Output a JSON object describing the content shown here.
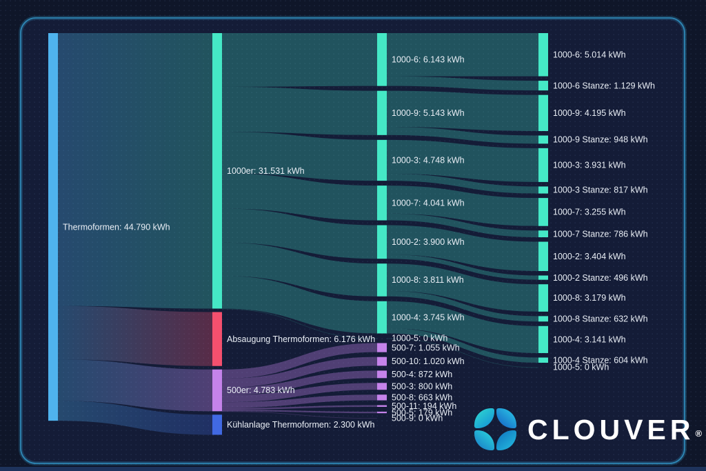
{
  "brand": {
    "name": "CLOUVER",
    "registered": "®"
  },
  "colors": {
    "blue": "#4FB3EE",
    "teal": "#45E8C6",
    "pink": "#F4506E",
    "purple": "#C583EA",
    "royal": "#4169E2",
    "label": "#E9EEF5",
    "frame_border": "#2E86B4",
    "background": "#141C37",
    "outer_background": "#0F1629"
  },
  "chart_data": {
    "type": "sankey",
    "unit": "kWh",
    "nodes": [
      {
        "id": "t",
        "col": 1,
        "label": "Thermoformen: 44.790 kWh",
        "value": 44790,
        "color": "blue"
      },
      {
        "id": "m1000",
        "col": 2,
        "label": "1000er: 31.531 kWh",
        "value": 31531,
        "color": "teal"
      },
      {
        "id": "abs",
        "col": 2,
        "label": "Absaugung Thermoformen: 6.176 kWh",
        "value": 6176,
        "color": "pink"
      },
      {
        "id": "m500",
        "col": 2,
        "label": "500er: 4.783 kWh",
        "value": 4783,
        "color": "purple"
      },
      {
        "id": "kuehl",
        "col": 2,
        "label": "Kühlanlage Thermoformen: 2.300 kWh",
        "value": 2300,
        "color": "royal"
      },
      {
        "id": "n1000_6",
        "col": 3,
        "label": "1000-6: 6.143 kWh",
        "value": 6143,
        "color": "teal"
      },
      {
        "id": "n1000_9",
        "col": 3,
        "label": "1000-9: 5.143 kWh",
        "value": 5143,
        "color": "teal"
      },
      {
        "id": "n1000_3",
        "col": 3,
        "label": "1000-3: 4.748 kWh",
        "value": 4748,
        "color": "teal"
      },
      {
        "id": "n1000_7",
        "col": 3,
        "label": "1000-7: 4.041 kWh",
        "value": 4041,
        "color": "teal"
      },
      {
        "id": "n1000_2",
        "col": 3,
        "label": "1000-2: 3.900 kWh",
        "value": 3900,
        "color": "teal"
      },
      {
        "id": "n1000_8",
        "col": 3,
        "label": "1000-8: 3.811 kWh",
        "value": 3811,
        "color": "teal"
      },
      {
        "id": "n1000_4",
        "col": 3,
        "label": "1000-4: 3.745 kWh",
        "value": 3745,
        "color": "teal"
      },
      {
        "id": "n1000_5",
        "col": 3,
        "label": "1000-5: 0 kWh",
        "value": 0,
        "color": "teal"
      },
      {
        "id": "n500_7",
        "col": 3,
        "label": "500-7: 1.055 kWh",
        "value": 1055,
        "color": "purple"
      },
      {
        "id": "n500_10",
        "col": 3,
        "label": "500-10: 1.020 kWh",
        "value": 1020,
        "color": "purple"
      },
      {
        "id": "n500_4",
        "col": 3,
        "label": "500-4: 872 kWh",
        "value": 872,
        "color": "purple"
      },
      {
        "id": "n500_3",
        "col": 3,
        "label": "500-3: 800 kWh",
        "value": 800,
        "color": "purple"
      },
      {
        "id": "n500_8",
        "col": 3,
        "label": "500-8: 663 kWh",
        "value": 663,
        "color": "purple"
      },
      {
        "id": "n500_11",
        "col": 3,
        "label": "500-11: 194 kWh",
        "value": 194,
        "color": "purple"
      },
      {
        "id": "n500_5",
        "col": 3,
        "label": "500-5: 179 kWh",
        "value": 179,
        "color": "purple"
      },
      {
        "id": "n500_9",
        "col": 3,
        "label": "500-9: 0 kWh",
        "value": 0,
        "color": "purple"
      },
      {
        "id": "o1000_6",
        "col": 4,
        "label": "1000-6: 5.014 kWh",
        "value": 5014,
        "color": "teal"
      },
      {
        "id": "s1000_6",
        "col": 4,
        "label": "1000-6 Stanze: 1.129 kWh",
        "value": 1129,
        "color": "teal"
      },
      {
        "id": "o1000_9",
        "col": 4,
        "label": "1000-9: 4.195 kWh",
        "value": 4195,
        "color": "teal"
      },
      {
        "id": "s1000_9",
        "col": 4,
        "label": "1000-9 Stanze: 948 kWh",
        "value": 948,
        "color": "teal"
      },
      {
        "id": "o1000_3",
        "col": 4,
        "label": "1000-3: 3.931 kWh",
        "value": 3931,
        "color": "teal"
      },
      {
        "id": "s1000_3",
        "col": 4,
        "label": "1000-3 Stanze: 817 kWh",
        "value": 817,
        "color": "teal"
      },
      {
        "id": "o1000_7",
        "col": 4,
        "label": "1000-7: 3.255 kWh",
        "value": 3255,
        "color": "teal"
      },
      {
        "id": "s1000_7",
        "col": 4,
        "label": "1000-7 Stanze: 786 kWh",
        "value": 786,
        "color": "teal"
      },
      {
        "id": "o1000_2",
        "col": 4,
        "label": "1000-2: 3.404 kWh",
        "value": 3404,
        "color": "teal"
      },
      {
        "id": "s1000_2",
        "col": 4,
        "label": "1000-2 Stanze: 496 kWh",
        "value": 496,
        "color": "teal"
      },
      {
        "id": "o1000_8",
        "col": 4,
        "label": "1000-8: 3.179 kWh",
        "value": 3179,
        "color": "teal"
      },
      {
        "id": "s1000_8",
        "col": 4,
        "label": "1000-8 Stanze: 632 kWh",
        "value": 632,
        "color": "teal"
      },
      {
        "id": "o1000_4",
        "col": 4,
        "label": "1000-4: 3.141 kWh",
        "value": 3141,
        "color": "teal"
      },
      {
        "id": "s1000_4",
        "col": 4,
        "label": "1000-4 Stanze: 604 kWh",
        "value": 604,
        "color": "teal"
      },
      {
        "id": "o1000_5",
        "col": 4,
        "label": "1000-5: 0 kWh",
        "value": 0,
        "color": "teal"
      }
    ],
    "links": [
      {
        "source": "t",
        "target": "m1000",
        "value": 31531
      },
      {
        "source": "t",
        "target": "abs",
        "value": 6176
      },
      {
        "source": "t",
        "target": "m500",
        "value": 4783
      },
      {
        "source": "t",
        "target": "kuehl",
        "value": 2300
      },
      {
        "source": "m1000",
        "target": "n1000_6",
        "value": 6143
      },
      {
        "source": "m1000",
        "target": "n1000_9",
        "value": 5143
      },
      {
        "source": "m1000",
        "target": "n1000_3",
        "value": 4748
      },
      {
        "source": "m1000",
        "target": "n1000_7",
        "value": 4041
      },
      {
        "source": "m1000",
        "target": "n1000_2",
        "value": 3900
      },
      {
        "source": "m1000",
        "target": "n1000_8",
        "value": 3811
      },
      {
        "source": "m1000",
        "target": "n1000_4",
        "value": 3745
      },
      {
        "source": "m1000",
        "target": "n1000_5",
        "value": 0
      },
      {
        "source": "m500",
        "target": "n500_7",
        "value": 1055
      },
      {
        "source": "m500",
        "target": "n500_10",
        "value": 1020
      },
      {
        "source": "m500",
        "target": "n500_4",
        "value": 872
      },
      {
        "source": "m500",
        "target": "n500_3",
        "value": 800
      },
      {
        "source": "m500",
        "target": "n500_8",
        "value": 663
      },
      {
        "source": "m500",
        "target": "n500_11",
        "value": 194
      },
      {
        "source": "m500",
        "target": "n500_5",
        "value": 179
      },
      {
        "source": "m500",
        "target": "n500_9",
        "value": 0
      },
      {
        "source": "n1000_6",
        "target": "o1000_6",
        "value": 5014
      },
      {
        "source": "n1000_6",
        "target": "s1000_6",
        "value": 1129
      },
      {
        "source": "n1000_9",
        "target": "o1000_9",
        "value": 4195
      },
      {
        "source": "n1000_9",
        "target": "s1000_9",
        "value": 948
      },
      {
        "source": "n1000_3",
        "target": "o1000_3",
        "value": 3931
      },
      {
        "source": "n1000_3",
        "target": "s1000_3",
        "value": 817
      },
      {
        "source": "n1000_7",
        "target": "o1000_7",
        "value": 3255
      },
      {
        "source": "n1000_7",
        "target": "s1000_7",
        "value": 786
      },
      {
        "source": "n1000_2",
        "target": "o1000_2",
        "value": 3404
      },
      {
        "source": "n1000_2",
        "target": "s1000_2",
        "value": 496
      },
      {
        "source": "n1000_8",
        "target": "o1000_8",
        "value": 3179
      },
      {
        "source": "n1000_8",
        "target": "s1000_8",
        "value": 632
      },
      {
        "source": "n1000_4",
        "target": "o1000_4",
        "value": 3141
      },
      {
        "source": "n1000_4",
        "target": "s1000_4",
        "value": 604
      },
      {
        "source": "n1000_5",
        "target": "o1000_5",
        "value": 0
      }
    ]
  }
}
